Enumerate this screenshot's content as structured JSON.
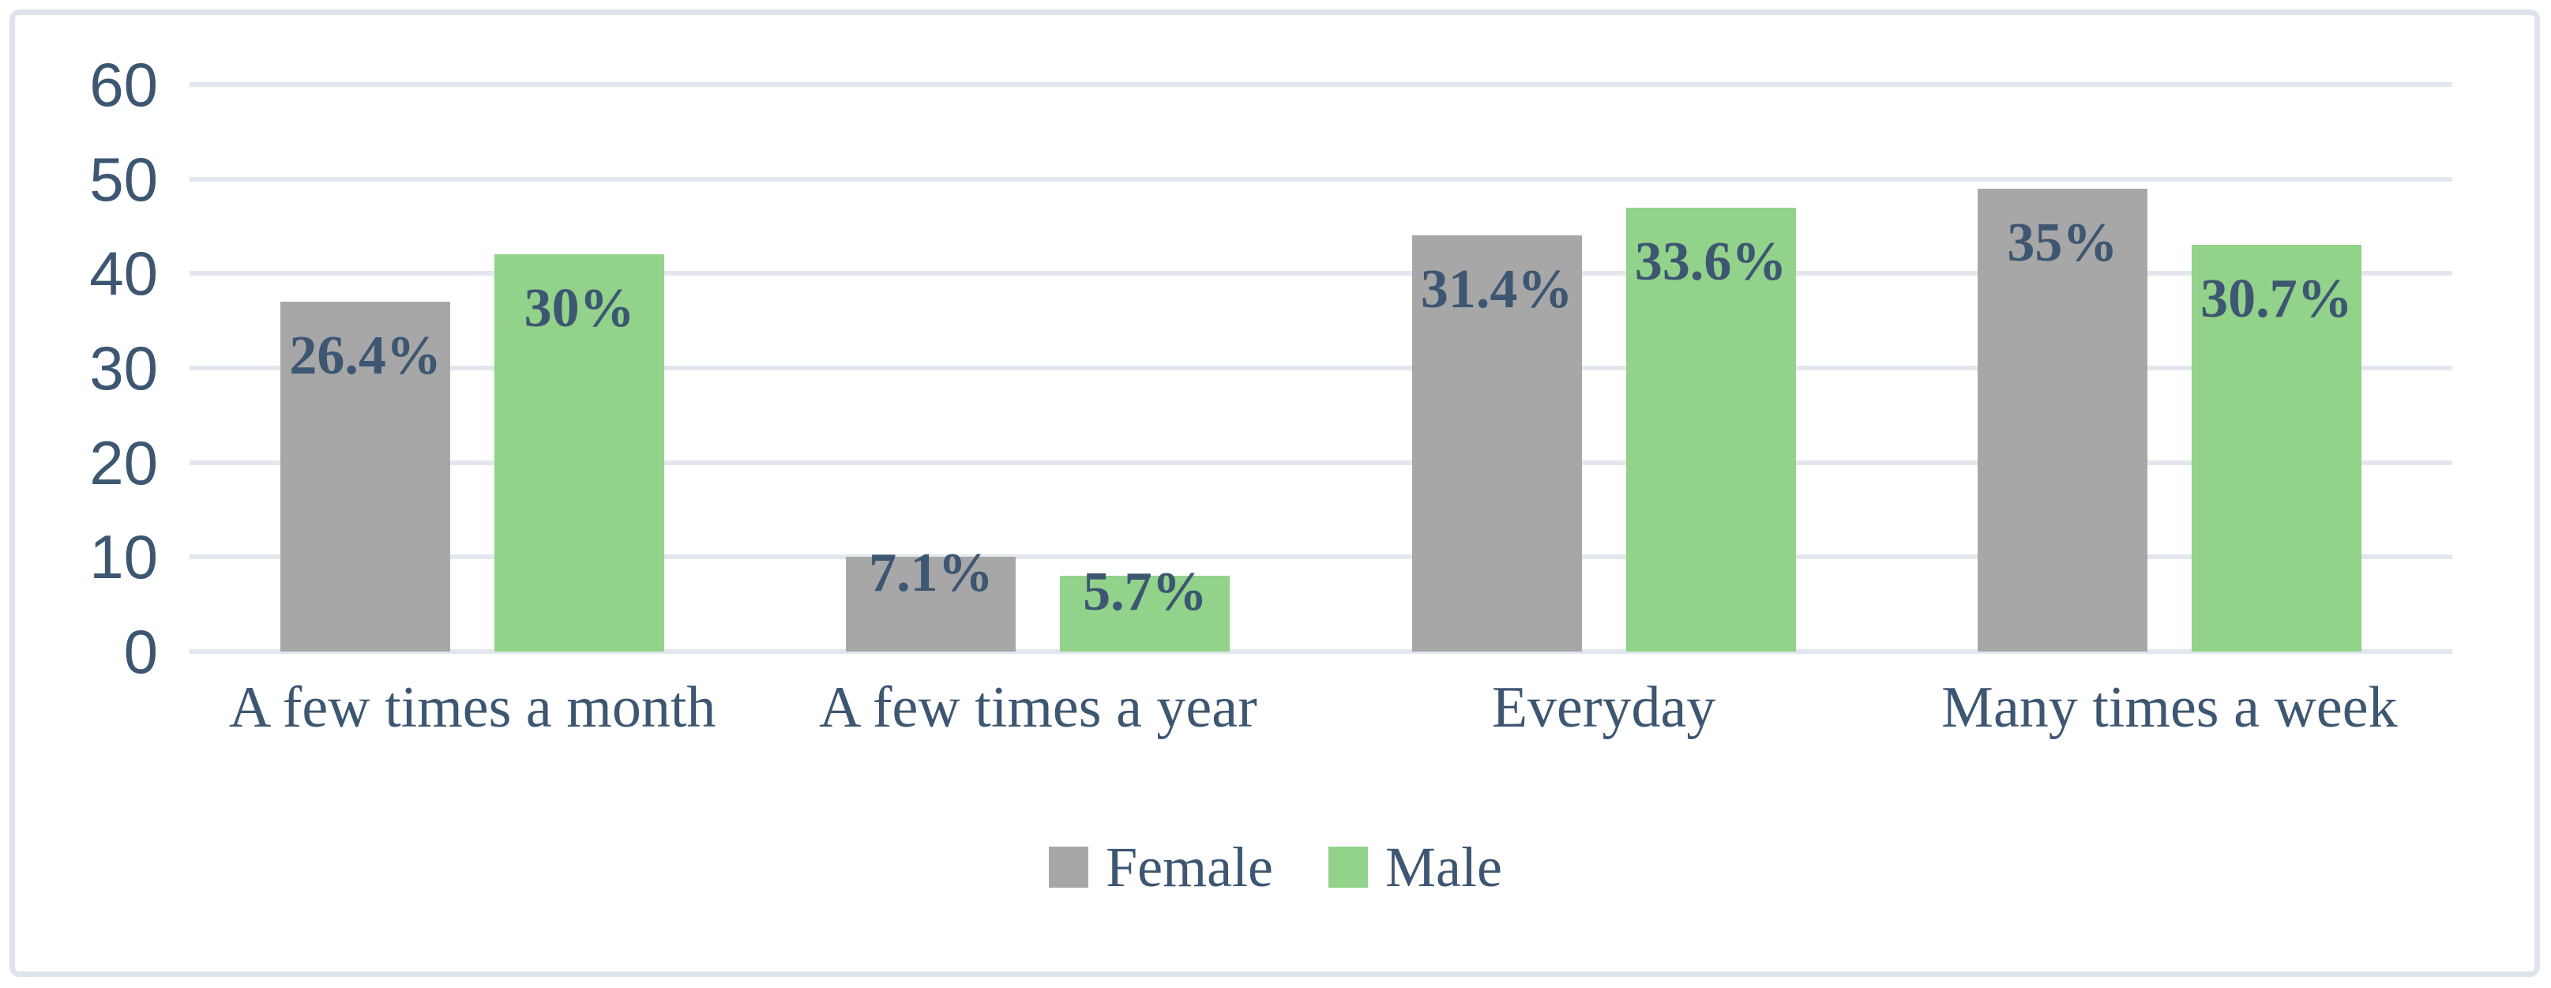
{
  "chart_data": {
    "type": "bar",
    "title": "",
    "categories": [
      "A few times a month",
      "A few times a year",
      "Everyday",
      "Many times a week"
    ],
    "series": [
      {
        "name": "Female",
        "color": "#A7A7A7",
        "values": [
          37,
          10,
          44,
          49
        ],
        "labels": [
          "26.4%",
          "7.1%",
          "31.4%",
          "35%"
        ]
      },
      {
        "name": "Male",
        "color": "#92D28A",
        "values": [
          42,
          8,
          47,
          43
        ],
        "labels": [
          "30%",
          "5.7%",
          "33.6%",
          "30.7%"
        ]
      }
    ],
    "y_axis": {
      "min": 0,
      "max": 60,
      "step": 10,
      "tick_labels": [
        "0",
        "10",
        "20",
        "30",
        "40",
        "50",
        "60"
      ]
    },
    "grid": true,
    "legend_position": "bottom",
    "colors": {
      "text": "#3D5671",
      "gridline": "#E2E7EE",
      "frame_border": "#DEE4EB",
      "background": "#FFFFFF"
    }
  }
}
